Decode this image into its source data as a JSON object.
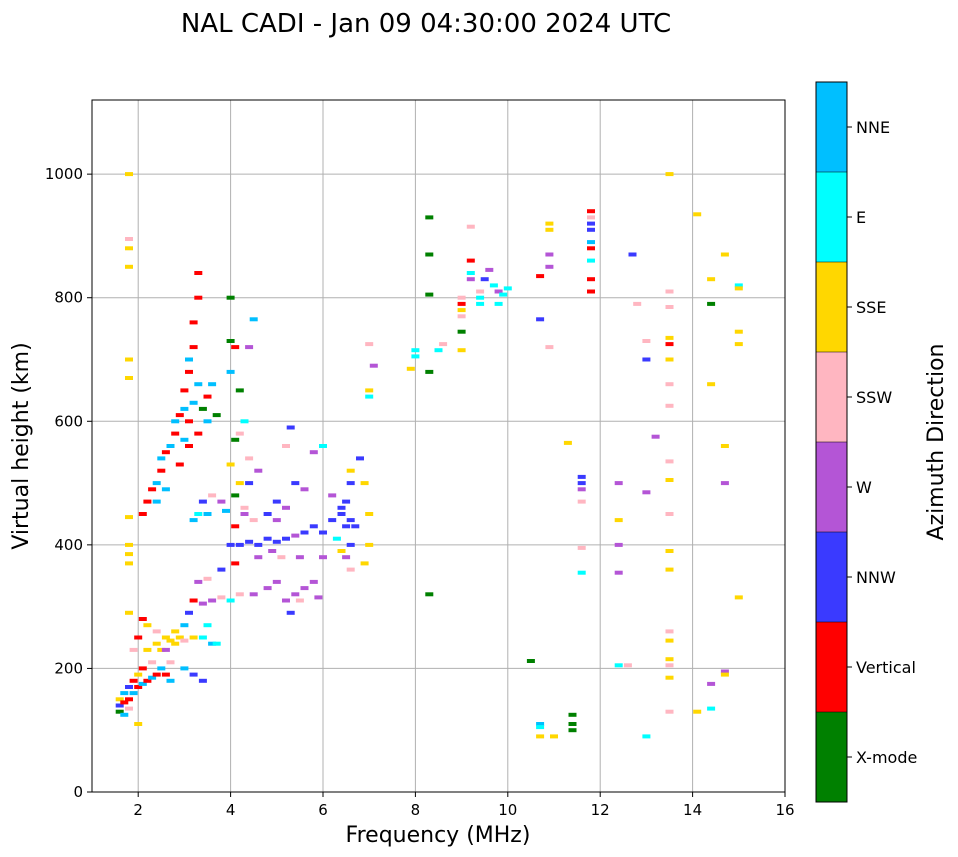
{
  "chart_data": {
    "type": "scatter",
    "title": "NAL CADI - Jan 09 04:30:00 2024 UTC",
    "xlabel": "Frequency (MHz)",
    "ylabel": "Virtual height (km)",
    "xlim": [
      1,
      16
    ],
    "ylim": [
      0,
      1120
    ],
    "xticks": [
      2,
      4,
      6,
      8,
      10,
      12,
      14,
      16
    ],
    "yticks": [
      0,
      200,
      400,
      600,
      800,
      1000
    ],
    "grid": true,
    "colorbar": {
      "title": "Azimuth Direction",
      "categories": [
        {
          "name": "X-mode",
          "color": "#008000"
        },
        {
          "name": "Vertical",
          "color": "#ff0000"
        },
        {
          "name": "NNW",
          "color": "#3a3aff"
        },
        {
          "name": "W",
          "color": "#b455d6"
        },
        {
          "name": "SSW",
          "color": "#ffb6c1"
        },
        {
          "name": "SSE",
          "color": "#ffd700"
        },
        {
          "name": "E",
          "color": "#00ffff"
        },
        {
          "name": "NNE",
          "color": "#00bfff"
        }
      ]
    },
    "points": [
      [
        1.6,
        140,
        2
      ],
      [
        1.6,
        130,
        0
      ],
      [
        1.6,
        150,
        5
      ],
      [
        1.7,
        145,
        1
      ],
      [
        1.7,
        160,
        7
      ],
      [
        1.8,
        150,
        1
      ],
      [
        1.8,
        170,
        2
      ],
      [
        1.8,
        135,
        4
      ],
      [
        1.9,
        180,
        1
      ],
      [
        1.9,
        160,
        7
      ],
      [
        2.0,
        170,
        1
      ],
      [
        2.0,
        190,
        5
      ],
      [
        2.1,
        175,
        7
      ],
      [
        2.1,
        200,
        1
      ],
      [
        2.2,
        180,
        1
      ],
      [
        2.2,
        230,
        5
      ],
      [
        2.3,
        185,
        7
      ],
      [
        2.3,
        210,
        4
      ],
      [
        2.4,
        190,
        1
      ],
      [
        2.4,
        240,
        5
      ],
      [
        2.5,
        200,
        7
      ],
      [
        2.5,
        230,
        5
      ],
      [
        2.6,
        190,
        1
      ],
      [
        2.6,
        250,
        5
      ],
      [
        2.7,
        180,
        7
      ],
      [
        2.7,
        245,
        5
      ],
      [
        2.8,
        240,
        5
      ],
      [
        2.9,
        250,
        5
      ],
      [
        3.0,
        245,
        4
      ],
      [
        3.2,
        250,
        5
      ],
      [
        3.4,
        250,
        6
      ],
      [
        3.6,
        240,
        7
      ],
      [
        2.0,
        250,
        1
      ],
      [
        2.1,
        280,
        1
      ],
      [
        1.8,
        290,
        5
      ],
      [
        1.9,
        230,
        4
      ],
      [
        2.2,
        270,
        5
      ],
      [
        2.4,
        260,
        4
      ],
      [
        2.0,
        110,
        5
      ],
      [
        1.7,
        125,
        7
      ],
      [
        2.1,
        450,
        1
      ],
      [
        2.2,
        470,
        1
      ],
      [
        2.3,
        490,
        1
      ],
      [
        2.4,
        500,
        7
      ],
      [
        2.5,
        520,
        1
      ],
      [
        2.5,
        540,
        7
      ],
      [
        2.6,
        550,
        1
      ],
      [
        2.7,
        560,
        7
      ],
      [
        2.8,
        580,
        1
      ],
      [
        2.8,
        600,
        7
      ],
      [
        2.9,
        610,
        1
      ],
      [
        3.0,
        620,
        7
      ],
      [
        3.0,
        650,
        1
      ],
      [
        3.1,
        680,
        1
      ],
      [
        3.1,
        700,
        7
      ],
      [
        3.2,
        720,
        1
      ],
      [
        3.2,
        760,
        1
      ],
      [
        3.3,
        800,
        1
      ],
      [
        3.3,
        840,
        1
      ],
      [
        3.1,
        600,
        1
      ],
      [
        2.4,
        470,
        7
      ],
      [
        2.6,
        490,
        7
      ],
      [
        2.9,
        530,
        1
      ],
      [
        3.0,
        570,
        7
      ],
      [
        3.2,
        630,
        7
      ],
      [
        3.3,
        660,
        7
      ],
      [
        3.5,
        640,
        1
      ],
      [
        3.6,
        660,
        7
      ],
      [
        3.7,
        610,
        0
      ],
      [
        3.4,
        620,
        0
      ],
      [
        3.2,
        440,
        7
      ],
      [
        3.3,
        450,
        6
      ],
      [
        3.5,
        450,
        7
      ],
      [
        3.4,
        470,
        2
      ],
      [
        3.6,
        480,
        4
      ],
      [
        3.8,
        470,
        3
      ],
      [
        3.9,
        455,
        7
      ],
      [
        3.1,
        560,
        1
      ],
      [
        3.3,
        580,
        1
      ],
      [
        3.5,
        600,
        7
      ],
      [
        4.0,
        800,
        0
      ],
      [
        4.0,
        730,
        0
      ],
      [
        4.1,
        720,
        1
      ],
      [
        4.2,
        650,
        0
      ],
      [
        4.0,
        680,
        7
      ],
      [
        4.3,
        600,
        6
      ],
      [
        4.2,
        580,
        4
      ],
      [
        4.1,
        570,
        0
      ],
      [
        4.4,
        540,
        4
      ],
      [
        4.0,
        530,
        5
      ],
      [
        4.2,
        500,
        5
      ],
      [
        4.1,
        480,
        0
      ],
      [
        4.3,
        460,
        4
      ],
      [
        4.5,
        765,
        7
      ],
      [
        4.4,
        720,
        3
      ],
      [
        4.6,
        520,
        3
      ],
      [
        4.4,
        500,
        2
      ],
      [
        4.3,
        450,
        3
      ],
      [
        4.1,
        430,
        1
      ],
      [
        4.5,
        440,
        4
      ],
      [
        3.2,
        310,
        1
      ],
      [
        3.4,
        305,
        3
      ],
      [
        3.6,
        310,
        3
      ],
      [
        3.8,
        315,
        4
      ],
      [
        4.0,
        310,
        6
      ],
      [
        4.2,
        320,
        4
      ],
      [
        4.5,
        320,
        3
      ],
      [
        4.8,
        330,
        3
      ],
      [
        5.0,
        340,
        3
      ],
      [
        5.2,
        310,
        3
      ],
      [
        5.4,
        320,
        3
      ],
      [
        5.6,
        330,
        3
      ],
      [
        5.8,
        340,
        3
      ],
      [
        5.3,
        290,
        2
      ],
      [
        5.5,
        310,
        4
      ],
      [
        5.9,
        315,
        3
      ],
      [
        3.3,
        340,
        3
      ],
      [
        3.5,
        345,
        4
      ],
      [
        3.8,
        360,
        2
      ],
      [
        4.1,
        370,
        1
      ],
      [
        4.0,
        400,
        2
      ],
      [
        4.2,
        400,
        2
      ],
      [
        4.4,
        405,
        2
      ],
      [
        4.6,
        400,
        2
      ],
      [
        4.8,
        410,
        2
      ],
      [
        5.0,
        405,
        2
      ],
      [
        5.2,
        410,
        2
      ],
      [
        5.4,
        415,
        3
      ],
      [
        5.6,
        420,
        2
      ],
      [
        5.8,
        430,
        2
      ],
      [
        6.0,
        420,
        2
      ],
      [
        6.2,
        440,
        2
      ],
      [
        6.4,
        450,
        2
      ],
      [
        6.5,
        470,
        2
      ],
      [
        6.6,
        500,
        2
      ],
      [
        6.6,
        520,
        5
      ],
      [
        6.8,
        540,
        2
      ],
      [
        6.9,
        500,
        5
      ],
      [
        7.0,
        450,
        5
      ],
      [
        7.0,
        400,
        5
      ],
      [
        6.6,
        360,
        4
      ],
      [
        6.9,
        370,
        5
      ],
      [
        6.5,
        380,
        3
      ],
      [
        6.7,
        430,
        2
      ],
      [
        6.6,
        440,
        2
      ],
      [
        4.6,
        380,
        3
      ],
      [
        4.9,
        390,
        3
      ],
      [
        5.1,
        380,
        4
      ],
      [
        5.5,
        380,
        3
      ],
      [
        6.0,
        380,
        3
      ],
      [
        5.0,
        470,
        2
      ],
      [
        5.2,
        460,
        3
      ],
      [
        5.4,
        500,
        2
      ],
      [
        5.6,
        490,
        3
      ],
      [
        6.0,
        560,
        6
      ],
      [
        5.3,
        590,
        2
      ],
      [
        5.8,
        550,
        3
      ],
      [
        5.2,
        560,
        4
      ],
      [
        4.8,
        450,
        2
      ],
      [
        5.0,
        440,
        3
      ],
      [
        6.2,
        480,
        3
      ],
      [
        6.4,
        460,
        2
      ],
      [
        6.5,
        430,
        2
      ],
      [
        6.6,
        400,
        2
      ],
      [
        6.3,
        410,
        6
      ],
      [
        6.4,
        390,
        5
      ],
      [
        7.1,
        690,
        3
      ],
      [
        7.0,
        650,
        5
      ],
      [
        7.0,
        725,
        4
      ],
      [
        7.0,
        640,
        6
      ],
      [
        3.5,
        270,
        6
      ],
      [
        3.7,
        240,
        6
      ],
      [
        3.0,
        270,
        7
      ],
      [
        2.8,
        260,
        5
      ],
      [
        3.1,
        290,
        2
      ],
      [
        3.2,
        190,
        2
      ],
      [
        3.4,
        180,
        2
      ],
      [
        3.0,
        200,
        7
      ],
      [
        2.6,
        230,
        3
      ],
      [
        2.7,
        210,
        4
      ],
      [
        1.8,
        1000,
        5
      ],
      [
        1.8,
        895,
        4
      ],
      [
        1.8,
        880,
        5
      ],
      [
        1.8,
        850,
        5
      ],
      [
        1.8,
        700,
        5
      ],
      [
        1.8,
        670,
        5
      ],
      [
        1.8,
        445,
        5
      ],
      [
        1.8,
        400,
        5
      ],
      [
        1.8,
        385,
        5
      ],
      [
        1.8,
        370,
        5
      ],
      [
        8.3,
        930,
        0
      ],
      [
        8.3,
        870,
        0
      ],
      [
        8.3,
        805,
        0
      ],
      [
        8.3,
        680,
        0
      ],
      [
        8.0,
        715,
        6
      ],
      [
        8.0,
        705,
        6
      ],
      [
        7.9,
        685,
        5
      ],
      [
        8.5,
        715,
        6
      ],
      [
        8.6,
        725,
        4
      ],
      [
        8.3,
        320,
        0
      ],
      [
        9.0,
        790,
        1
      ],
      [
        9.0,
        800,
        4
      ],
      [
        9.0,
        780,
        5
      ],
      [
        9.0,
        770,
        4
      ],
      [
        9.0,
        745,
        0
      ],
      [
        9.0,
        715,
        5
      ],
      [
        9.2,
        860,
        1
      ],
      [
        9.2,
        840,
        6
      ],
      [
        9.2,
        830,
        3
      ],
      [
        9.2,
        915,
        4
      ],
      [
        9.4,
        800,
        6
      ],
      [
        9.4,
        790,
        6
      ],
      [
        9.5,
        830,
        2
      ],
      [
        9.6,
        845,
        3
      ],
      [
        9.7,
        820,
        6
      ],
      [
        9.8,
        810,
        3
      ],
      [
        9.9,
        805,
        6
      ],
      [
        10.0,
        815,
        6
      ],
      [
        9.4,
        810,
        4
      ],
      [
        9.8,
        790,
        6
      ],
      [
        10.7,
        835,
        1
      ],
      [
        10.7,
        765,
        2
      ],
      [
        10.9,
        920,
        5
      ],
      [
        10.9,
        910,
        5
      ],
      [
        10.9,
        870,
        3
      ],
      [
        10.9,
        850,
        3
      ],
      [
        10.9,
        720,
        4
      ],
      [
        10.5,
        212,
        0
      ],
      [
        10.7,
        110,
        7
      ],
      [
        10.7,
        105,
        6
      ],
      [
        10.7,
        90,
        5
      ],
      [
        11.0,
        90,
        5
      ],
      [
        11.4,
        125,
        0
      ],
      [
        11.4,
        110,
        0
      ],
      [
        11.4,
        100,
        0
      ],
      [
        11.3,
        565,
        5
      ],
      [
        11.6,
        510,
        2
      ],
      [
        11.6,
        500,
        2
      ],
      [
        11.6,
        490,
        3
      ],
      [
        11.6,
        470,
        4
      ],
      [
        11.6,
        395,
        4
      ],
      [
        11.6,
        355,
        6
      ],
      [
        11.8,
        940,
        1
      ],
      [
        11.8,
        930,
        4
      ],
      [
        11.8,
        920,
        2
      ],
      [
        11.8,
        910,
        2
      ],
      [
        11.8,
        890,
        7
      ],
      [
        11.8,
        880,
        1
      ],
      [
        11.8,
        860,
        6
      ],
      [
        11.8,
        830,
        1
      ],
      [
        11.8,
        810,
        1
      ],
      [
        12.4,
        500,
        3
      ],
      [
        12.4,
        440,
        5
      ],
      [
        12.4,
        400,
        3
      ],
      [
        12.4,
        355,
        3
      ],
      [
        12.4,
        205,
        6
      ],
      [
        12.6,
        205,
        4
      ],
      [
        12.7,
        870,
        2
      ],
      [
        12.8,
        790,
        4
      ],
      [
        13.0,
        730,
        4
      ],
      [
        13.0,
        700,
        2
      ],
      [
        13.0,
        485,
        3
      ],
      [
        13.0,
        90,
        6
      ],
      [
        13.2,
        575,
        3
      ],
      [
        13.5,
        1000,
        5
      ],
      [
        13.5,
        810,
        4
      ],
      [
        13.5,
        785,
        4
      ],
      [
        13.5,
        735,
        5
      ],
      [
        13.5,
        725,
        1
      ],
      [
        13.5,
        700,
        5
      ],
      [
        13.5,
        660,
        4
      ],
      [
        13.5,
        625,
        4
      ],
      [
        13.5,
        535,
        4
      ],
      [
        13.5,
        505,
        5
      ],
      [
        13.5,
        450,
        4
      ],
      [
        13.5,
        390,
        5
      ],
      [
        13.5,
        360,
        5
      ],
      [
        13.5,
        260,
        4
      ],
      [
        13.5,
        245,
        5
      ],
      [
        13.5,
        215,
        5
      ],
      [
        13.5,
        205,
        4
      ],
      [
        13.5,
        185,
        5
      ],
      [
        13.5,
        130,
        4
      ],
      [
        14.1,
        935,
        5
      ],
      [
        14.1,
        130,
        5
      ],
      [
        14.4,
        790,
        0
      ],
      [
        14.4,
        830,
        5
      ],
      [
        14.4,
        660,
        5
      ],
      [
        14.4,
        175,
        3
      ],
      [
        14.4,
        135,
        6
      ],
      [
        14.7,
        870,
        5
      ],
      [
        14.7,
        560,
        5
      ],
      [
        14.7,
        500,
        3
      ],
      [
        14.7,
        195,
        3
      ],
      [
        14.7,
        190,
        5
      ],
      [
        15.0,
        820,
        6
      ],
      [
        15.0,
        815,
        5
      ],
      [
        15.0,
        745,
        5
      ],
      [
        15.0,
        725,
        5
      ],
      [
        15.0,
        315,
        5
      ]
    ]
  }
}
